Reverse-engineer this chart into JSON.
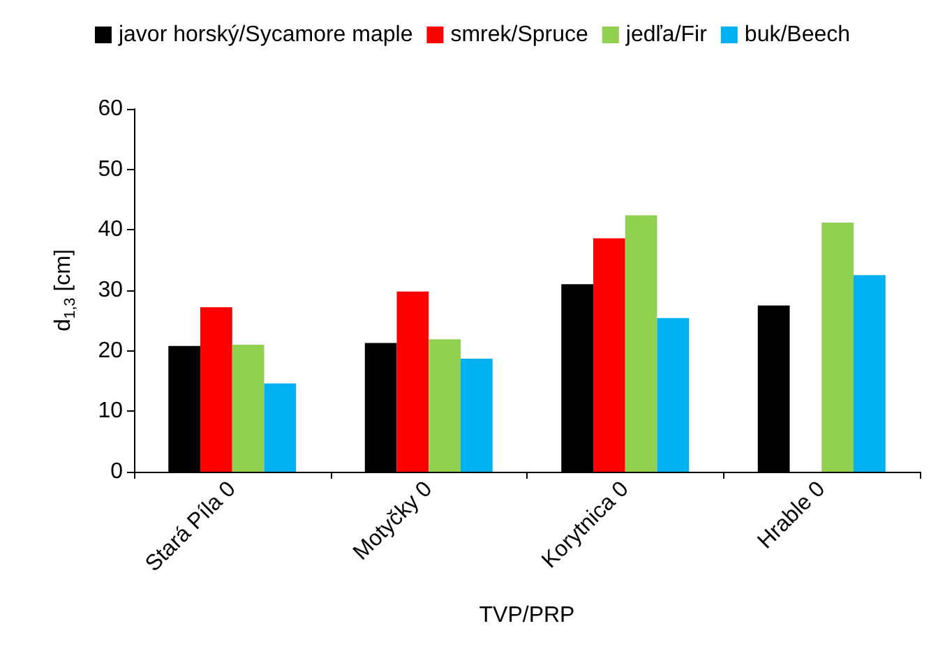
{
  "chart_data": {
    "type": "bar",
    "xlabel": "TVP/PRP",
    "ylabel": "d$_{1,3}$ [cm]",
    "categories": [
      "Stará Píla 0",
      "Motyčky 0",
      "Korytnica 0",
      "Hrable 0"
    ],
    "series": [
      {
        "name": "javor horský/Sycamore maple",
        "color": "#000000",
        "values": [
          20.8,
          21.3,
          31.0,
          27.5
        ]
      },
      {
        "name": "smrek/Spruce",
        "color": "#ff0000",
        "values": [
          27.2,
          29.8,
          38.6,
          null
        ]
      },
      {
        "name": "jedľa/Fir",
        "color": "#92d050",
        "values": [
          21.0,
          21.9,
          42.4,
          41.2
        ]
      },
      {
        "name": "buk/Beech",
        "color": "#00b0f0",
        "values": [
          14.6,
          18.7,
          25.4,
          32.5
        ]
      }
    ],
    "ylim": [
      0,
      60
    ],
    "yticks": [
      0,
      10,
      20,
      30,
      40,
      50,
      60
    ],
    "grid": false,
    "legend": "top"
  }
}
